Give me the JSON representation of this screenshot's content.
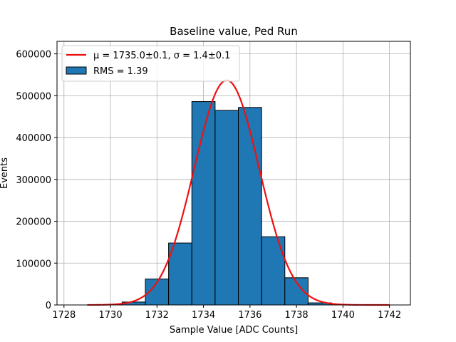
{
  "chart_data": {
    "type": "bar",
    "title": "Baseline value, Ped Run",
    "xlabel": "Sample Value [ADC Counts]",
    "ylabel": "Events",
    "xlim": [
      1727.7,
      1742.9
    ],
    "ylim": [
      0,
      630000
    ],
    "xticks": [
      1728,
      1730,
      1732,
      1734,
      1736,
      1738,
      1740,
      1742
    ],
    "yticks": [
      0,
      100000,
      200000,
      300000,
      400000,
      500000,
      600000
    ],
    "grid": true,
    "bin_width": 1,
    "bins": [
      {
        "center": 1729,
        "count": 0
      },
      {
        "center": 1730,
        "count": 800
      },
      {
        "center": 1731,
        "count": 7000
      },
      {
        "center": 1732,
        "count": 62000
      },
      {
        "center": 1733,
        "count": 148000
      },
      {
        "center": 1734,
        "count": 486000
      },
      {
        "center": 1735,
        "count": 465000
      },
      {
        "center": 1736,
        "count": 472000
      },
      {
        "center": 1737,
        "count": 163000
      },
      {
        "center": 1738,
        "count": 65000
      },
      {
        "center": 1739,
        "count": 5000
      },
      {
        "center": 1740,
        "count": 500
      },
      {
        "center": 1741,
        "count": 0
      }
    ],
    "fit": {
      "mu": 1735.0,
      "sigma": 1.4,
      "amplitude": 537000,
      "x_range": [
        1729,
        1742
      ]
    },
    "legend": {
      "position": "top-left",
      "fit_label": "μ = 1735.0±0.1, σ = 1.4±0.1",
      "hist_label": "RMS = 1.39"
    },
    "colors": {
      "bar_fill": "#1f77b4",
      "bar_edge": "#000000",
      "fit_line": "#ee1111",
      "grid": "#b0b0b0"
    }
  }
}
